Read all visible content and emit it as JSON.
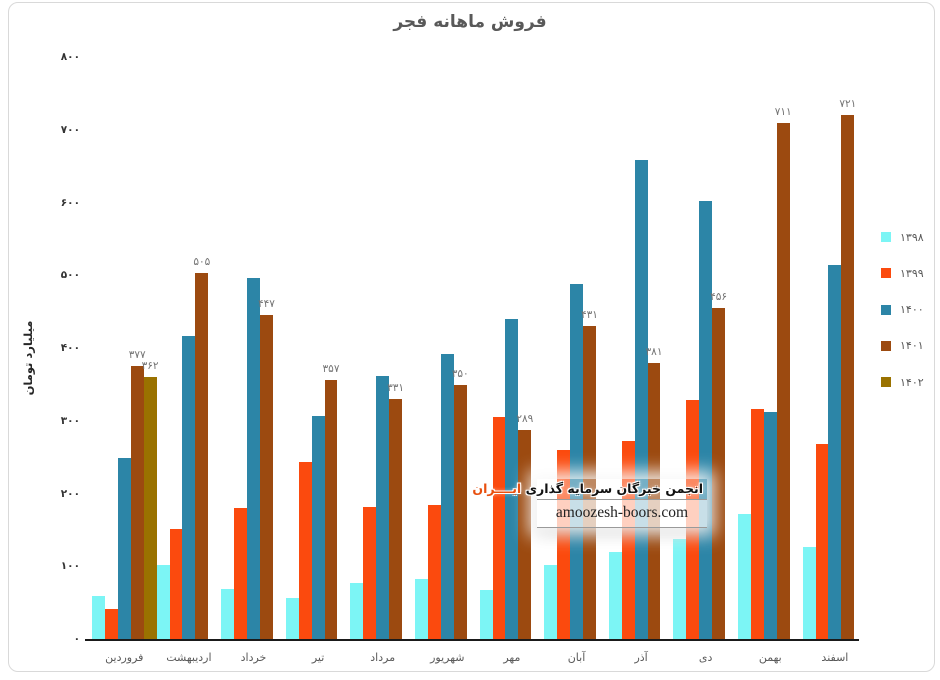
{
  "chart_data": {
    "type": "bar",
    "title": "فروش ماهانه فجر",
    "xlabel": "",
    "ylabel": "میلیارد تومان",
    "grid": false,
    "legend_position": "right",
    "categories": [
      "فروردین",
      "اردیبهشت",
      "خرداد",
      "تیر",
      "مرداد",
      "شهریور",
      "مهر",
      "آبان",
      "آذر",
      "دی",
      "بهمن",
      "اسفند"
    ],
    "y_axis": {
      "min": 0,
      "max": 800,
      "step": 100,
      "ticks": [
        {
          "label": "۸۰۰",
          "value": 800
        },
        {
          "label": "۷۰۰",
          "value": 700
        },
        {
          "label": "۶۰۰",
          "value": 600
        },
        {
          "label": "۵۰۰",
          "value": 500
        },
        {
          "label": "۴۰۰",
          "value": 400
        },
        {
          "label": "۳۰۰",
          "value": 300
        },
        {
          "label": "۲۰۰",
          "value": 200
        },
        {
          "label": "۱۰۰",
          "value": 100
        },
        {
          "label": "۰",
          "value": 0
        }
      ]
    },
    "series": [
      {
        "name": "۱۳۹۸",
        "color": "#7CF5F5",
        "values": [
          60,
          103,
          70,
          58,
          79,
          84,
          69,
          103,
          121,
          139,
          173,
          128
        ],
        "labels": [
          null,
          null,
          null,
          null,
          null,
          null,
          null,
          null,
          null,
          null,
          null,
          null
        ]
      },
      {
        "name": "۱۳۹۹",
        "color": "#FB4A0E",
        "values": [
          43,
          153,
          181,
          245,
          183,
          186,
          306,
          261,
          273,
          330,
          318,
          270
        ],
        "labels": [
          null,
          null,
          null,
          null,
          null,
          null,
          null,
          null,
          null,
          null,
          null,
          null
        ]
      },
      {
        "name": "۱۴۰۰",
        "color": "#2C85A7",
        "values": [
          250,
          418,
          497,
          308,
          363,
          393,
          441,
          490,
          660,
          603,
          313,
          515
        ],
        "labels": [
          null,
          null,
          null,
          null,
          null,
          null,
          null,
          null,
          null,
          null,
          null,
          null
        ]
      },
      {
        "name": "۱۴۰۱",
        "color": "#9C4A10",
        "values": [
          377,
          505,
          447,
          357,
          331,
          350,
          289,
          431,
          381,
          456,
          711,
          721
        ],
        "labels": [
          "۳۷۷",
          "۵۰۵",
          "۴۴۷",
          "۳۵۷",
          "۳۳۱",
          "۳۵۰",
          "۲۸۹",
          "۴۳۱",
          "۳۸۱",
          "۴۵۶",
          "۷۱۱",
          "۷۲۱"
        ]
      },
      {
        "name": "۱۴۰۲",
        "color": "#9A7200",
        "values": [
          362,
          null,
          null,
          null,
          null,
          null,
          null,
          null,
          null,
          null,
          null,
          null
        ],
        "labels": [
          "۳۶۲",
          null,
          null,
          null,
          null,
          null,
          null,
          null,
          null,
          null,
          null,
          null
        ]
      }
    ]
  },
  "watermark": {
    "line1_prefix": "انجمن خبرگان سرمایه گذاری",
    "line1_highlight": "ایــــران",
    "highlight_color": "#E8500F",
    "line2": "amoozesh-boors.com"
  }
}
